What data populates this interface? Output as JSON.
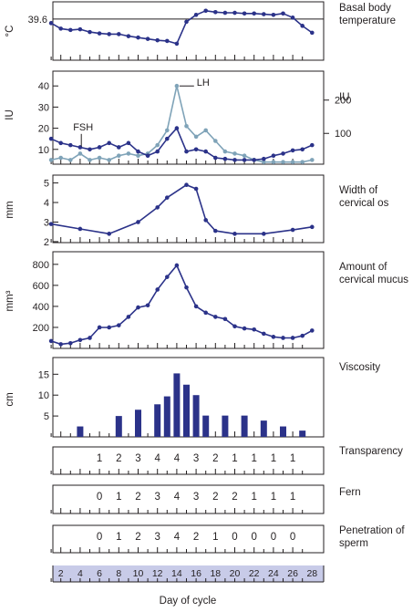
{
  "figure": {
    "x_axis": {
      "label": "Day of cycle",
      "ticks": [
        2,
        4,
        6,
        8,
        10,
        12,
        14,
        16,
        18,
        20,
        22,
        24,
        26,
        28
      ],
      "range": [
        0,
        28
      ]
    },
    "colors": {
      "navy": "#2b3289",
      "lightblue": "#7fa3b8",
      "band": "#c8cbe8",
      "axis": "#231f20"
    }
  },
  "chart_data": [
    {
      "id": "bbt",
      "type": "line",
      "title": "Basal body temperature",
      "ylabel": "°C",
      "yticks": [
        39.6
      ],
      "reference_line": 39.6,
      "ylim": [
        39.0,
        39.85
      ],
      "series": [
        {
          "x": [
            1,
            2,
            3,
            4,
            5,
            6,
            7,
            8,
            9,
            10,
            11,
            12,
            13,
            14,
            15,
            16,
            17,
            18,
            19,
            20,
            21,
            22,
            23,
            24,
            25,
            26,
            27,
            28
          ],
          "values": [
            39.54,
            39.46,
            39.44,
            39.45,
            39.41,
            39.39,
            39.38,
            39.38,
            39.35,
            39.33,
            39.31,
            39.29,
            39.28,
            39.24,
            39.56,
            39.66,
            39.72,
            39.7,
            39.69,
            39.69,
            39.68,
            39.68,
            39.67,
            39.66,
            39.68,
            39.62,
            39.5,
            39.4
          ],
          "color": "#2b3289"
        }
      ]
    },
    {
      "id": "hormones",
      "type": "line",
      "title": "IU",
      "ylabel": "IU",
      "yticks": [
        10,
        20,
        30,
        40
      ],
      "ylim": [
        3,
        47
      ],
      "right_yticks": [
        100,
        200
      ],
      "right_ylim": [
        7.5,
        287
      ],
      "annotations": [
        {
          "text": "FSH",
          "x": 4.5,
          "y": 13
        },
        {
          "text": "LH",
          "x": 15.5,
          "y": 41
        }
      ],
      "series": [
        {
          "name": "FSH",
          "color": "#2b3289",
          "x": [
            1,
            2,
            3,
            4,
            5,
            6,
            7,
            8,
            9,
            10,
            11,
            12,
            13,
            14,
            15,
            16,
            17,
            18,
            19,
            20,
            21,
            22,
            23,
            24,
            25,
            26,
            27,
            28
          ],
          "values": [
            15,
            13,
            12,
            11,
            10,
            11,
            13,
            11,
            13,
            9,
            7,
            9,
            15,
            20,
            9,
            10,
            9,
            6,
            5.5,
            5,
            5,
            5,
            5.5,
            7,
            8,
            9.5,
            10,
            12
          ]
        },
        {
          "name": "LH",
          "color": "#7fa3b8",
          "x": [
            1,
            2,
            3,
            4,
            5,
            6,
            7,
            8,
            9,
            10,
            11,
            12,
            13,
            14,
            15,
            16,
            17,
            18,
            19,
            20,
            21,
            22,
            23,
            24,
            25,
            26,
            27,
            28
          ],
          "values": [
            5,
            6,
            5,
            8,
            5,
            6,
            5,
            7,
            8,
            7,
            8,
            12,
            19,
            40,
            21,
            16,
            19,
            14,
            9,
            8,
            7,
            5,
            4,
            4,
            4,
            4,
            4,
            5
          ]
        }
      ]
    },
    {
      "id": "os",
      "type": "line",
      "title": "Width of cervical os",
      "ylabel": "mm",
      "yticks": [
        2,
        3,
        4,
        5
      ],
      "ylim": [
        1.95,
        5.4
      ],
      "series": [
        {
          "x": [
            1,
            4,
            7,
            10,
            12,
            13,
            15,
            16,
            17,
            18,
            20,
            23,
            26,
            28
          ],
          "values": [
            2.9,
            2.65,
            2.4,
            3.0,
            3.75,
            4.25,
            4.9,
            4.7,
            3.1,
            2.55,
            2.4,
            2.4,
            2.6,
            2.75
          ],
          "color": "#2b3289"
        }
      ]
    },
    {
      "id": "mucus",
      "type": "line",
      "title": "Amount of cervical mucus",
      "ylabel": "mm³",
      "yticks": [
        200,
        400,
        600,
        800
      ],
      "ylim": [
        0,
        920
      ],
      "series": [
        {
          "x": [
            1,
            2,
            3,
            4,
            5,
            6,
            7,
            8,
            9,
            10,
            11,
            12,
            13,
            14,
            15,
            16,
            17,
            18,
            19,
            20,
            21,
            22,
            23,
            24,
            25,
            26,
            27,
            28
          ],
          "values": [
            70,
            40,
            50,
            80,
            100,
            200,
            200,
            220,
            300,
            390,
            410,
            560,
            680,
            790,
            580,
            400,
            340,
            300,
            280,
            210,
            190,
            180,
            140,
            110,
            100,
            100,
            120,
            170
          ],
          "color": "#2b3289"
        }
      ]
    },
    {
      "id": "viscosity",
      "type": "bar",
      "title": "Viscosity",
      "ylabel": "cm",
      "yticks": [
        5,
        10,
        15
      ],
      "ylim": [
        0,
        19
      ],
      "categories": [
        4,
        8,
        10,
        12,
        13,
        14,
        15,
        16,
        17,
        19,
        21,
        23,
        25,
        27
      ],
      "values": [
        2.5,
        5,
        6.5,
        7.8,
        9.7,
        15.2,
        12.5,
        10,
        5.1,
        5.1,
        5.1,
        3.9,
        2.5,
        1.5
      ],
      "color": "#2b3289"
    },
    {
      "id": "transparency",
      "type": "table",
      "title": "Transparency",
      "x": [
        6,
        8,
        10,
        12,
        14,
        16,
        18,
        20,
        22,
        24,
        26
      ],
      "values": [
        "1",
        "2",
        "3",
        "4",
        "4",
        "3",
        "2",
        "1",
        "1",
        "1",
        "1"
      ]
    },
    {
      "id": "fern",
      "type": "table",
      "title": "Fern",
      "x": [
        6,
        8,
        10,
        12,
        14,
        16,
        18,
        20,
        22,
        24,
        26
      ],
      "values": [
        "0",
        "1",
        "2",
        "3",
        "4",
        "3",
        "2",
        "2",
        "1",
        "1",
        "1"
      ]
    },
    {
      "id": "penetration",
      "type": "table",
      "title": "Penetration of sperm",
      "x": [
        6,
        8,
        10,
        12,
        14,
        16,
        18,
        20,
        22,
        24,
        26
      ],
      "values": [
        "0",
        "1",
        "2",
        "3",
        "4",
        "2",
        "1",
        "0",
        "0",
        "0",
        "0"
      ]
    }
  ]
}
